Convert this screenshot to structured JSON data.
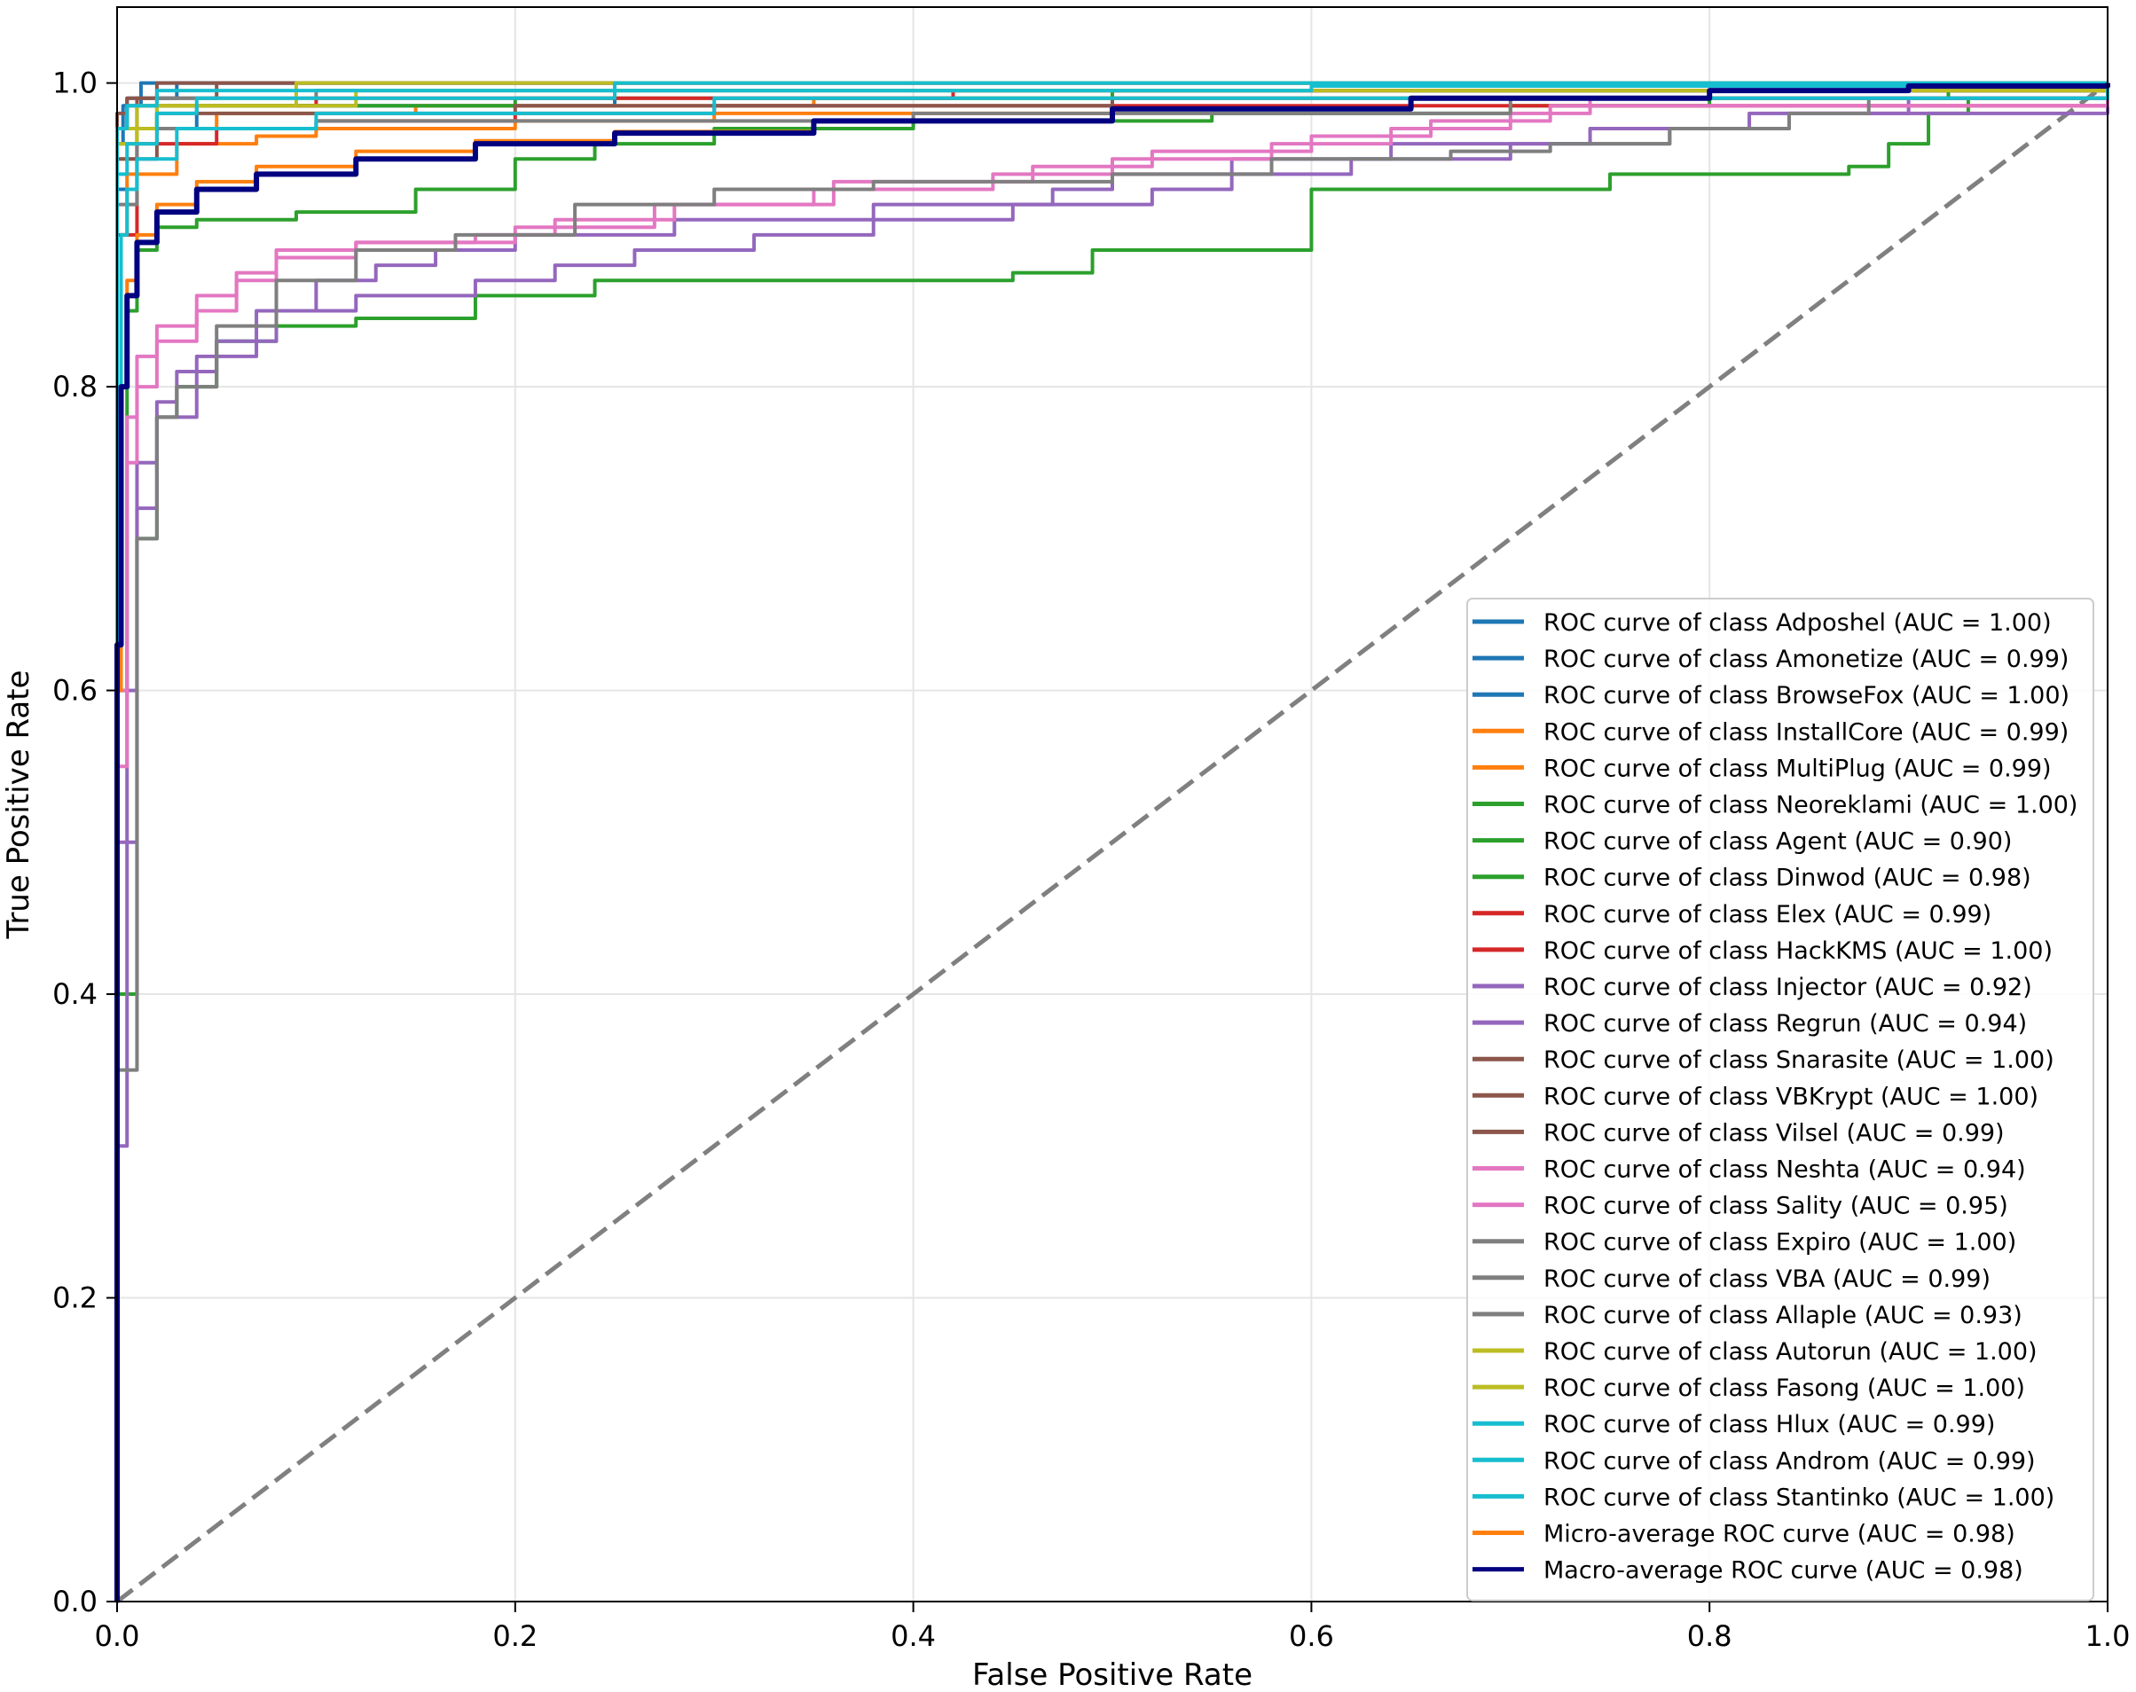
{
  "chart_data": {
    "type": "line",
    "title": "",
    "xlabel": "False Positive Rate",
    "ylabel": "True Positive Rate",
    "xlim": [
      0.0,
      1.0
    ],
    "ylim": [
      0.0,
      1.05
    ],
    "xticks": [
      "0.0",
      "0.2",
      "0.4",
      "0.6",
      "0.8",
      "1.0"
    ],
    "yticks": [
      "0.0",
      "0.2",
      "0.4",
      "0.6",
      "0.8",
      "1.0"
    ],
    "grid": true,
    "legend_position": "lower-right",
    "chance_line": {
      "x": [
        0,
        1
      ],
      "y": [
        0,
        1
      ],
      "color": "#808080",
      "style": "dashed"
    },
    "series": [
      {
        "name": "ROC curve of class Adposhel (AUC = 1.00)",
        "color": "#1f77b4",
        "x": [
          0,
          0.0,
          0.003,
          0.012,
          1.0
        ],
        "y": [
          0,
          0.96,
          0.985,
          1.0,
          1.0
        ]
      },
      {
        "name": "ROC curve of class Amonetize (AUC = 0.99)",
        "color": "#1f77b4",
        "x": [
          0,
          0.0,
          0.01,
          0.04,
          0.25,
          1.0
        ],
        "y": [
          0,
          0.93,
          0.97,
          0.985,
          0.995,
          1.0
        ]
      },
      {
        "name": "ROC curve of class BrowseFox (AUC = 1.00)",
        "color": "#1f77b4",
        "x": [
          0,
          0.0,
          0.005,
          0.03,
          1.0
        ],
        "y": [
          0,
          0.97,
          0.99,
          1.0,
          1.0
        ]
      },
      {
        "name": "ROC curve of class InstallCore (AUC = 0.99)",
        "color": "#ff7f0e",
        "x": [
          0,
          0.0,
          0.005,
          0.03,
          0.07,
          0.1,
          0.2,
          0.3,
          0.5,
          1.0
        ],
        "y": [
          0,
          0.9,
          0.94,
          0.96,
          0.965,
          0.97,
          0.975,
          0.98,
          0.99,
          1.0
        ]
      },
      {
        "name": "ROC curve of class MultiPlug (AUC = 0.99)",
        "color": "#ff7f0e",
        "x": [
          0,
          0.0,
          0.01,
          0.05,
          0.15,
          0.35,
          0.5,
          1.0
        ],
        "y": [
          0,
          0.95,
          0.97,
          0.98,
          0.985,
          0.99,
          0.995,
          1.0
        ]
      },
      {
        "name": "ROC curve of class Neoreklami (AUC = 1.00)",
        "color": "#2ca02c",
        "x": [
          0,
          0.0,
          0.02,
          0.2,
          0.5,
          1.0
        ],
        "y": [
          0,
          0.97,
          0.985,
          0.99,
          0.995,
          1.0
        ]
      },
      {
        "name": "ROC curve of class Agent (AUC = 0.90)",
        "color": "#2ca02c",
        "x": [
          0,
          0.0,
          0.01,
          0.02,
          0.03,
          0.05,
          0.08,
          0.12,
          0.18,
          0.24,
          0.33,
          0.45,
          0.49,
          0.6,
          0.75,
          0.87,
          0.89,
          0.91,
          0.93,
          1.0
        ],
        "y": [
          0,
          0.4,
          0.7,
          0.78,
          0.8,
          0.83,
          0.84,
          0.845,
          0.86,
          0.87,
          0.87,
          0.875,
          0.89,
          0.93,
          0.94,
          0.945,
          0.96,
          0.98,
          0.99,
          1.0
        ]
      },
      {
        "name": "ROC curve of class Dinwod (AUC = 0.98)",
        "color": "#2ca02c",
        "x": [
          0,
          0.0,
          0.005,
          0.01,
          0.02,
          0.04,
          0.09,
          0.15,
          0.2,
          0.24,
          0.3,
          0.4,
          0.55,
          0.7,
          0.8,
          0.92,
          1.0
        ],
        "y": [
          0,
          0.6,
          0.85,
          0.89,
          0.905,
          0.91,
          0.915,
          0.93,
          0.95,
          0.96,
          0.97,
          0.975,
          0.98,
          0.985,
          0.99,
          0.995,
          1.0
        ]
      },
      {
        "name": "ROC curve of class Elex (AUC = 0.99)",
        "color": "#d62728",
        "x": [
          0,
          0.0,
          0.01,
          0.05,
          0.1,
          0.2,
          0.3,
          1.0
        ],
        "y": [
          0,
          0.9,
          0.96,
          0.97,
          0.975,
          0.98,
          0.985,
          1.0
        ]
      },
      {
        "name": "ROC curve of class HackKMS (AUC = 1.00)",
        "color": "#d62728",
        "x": [
          0,
          0.0,
          0.01,
          0.1,
          0.3,
          0.42,
          1.0
        ],
        "y": [
          0,
          0.96,
          0.985,
          0.99,
          0.99,
          0.995,
          1.0
        ]
      },
      {
        "name": "ROC curve of class Injector (AUC = 0.92)",
        "color": "#9467bd",
        "x": [
          0,
          0.0,
          0.005,
          0.01,
          0.02,
          0.03,
          0.05,
          0.08,
          0.12,
          0.18,
          0.22,
          0.26,
          0.32,
          0.38,
          0.45,
          0.52,
          0.56,
          0.62,
          0.7,
          0.78,
          0.82,
          0.9,
          1.0
        ],
        "y": [
          0,
          0.3,
          0.6,
          0.75,
          0.79,
          0.81,
          0.83,
          0.85,
          0.86,
          0.87,
          0.88,
          0.89,
          0.9,
          0.91,
          0.92,
          0.93,
          0.94,
          0.95,
          0.96,
          0.97,
          0.98,
          0.99,
          1.0
        ]
      },
      {
        "name": "ROC curve of class Regrun (AUC = 0.94)",
        "color": "#9467bd",
        "x": [
          0,
          0.0,
          0.01,
          0.02,
          0.04,
          0.07,
          0.1,
          0.13,
          0.16,
          0.2,
          0.28,
          0.38,
          0.47,
          0.5,
          0.56,
          0.64,
          0.74,
          0.84,
          1.0
        ],
        "y": [
          0,
          0.5,
          0.72,
          0.78,
          0.82,
          0.85,
          0.87,
          0.88,
          0.89,
          0.9,
          0.91,
          0.92,
          0.93,
          0.94,
          0.95,
          0.96,
          0.97,
          0.98,
          1.0
        ]
      },
      {
        "name": "ROC curve of class Snarasite (AUC = 1.00)",
        "color": "#8c564b",
        "x": [
          0,
          0.0,
          0.005,
          0.02,
          1.0
        ],
        "y": [
          0,
          0.98,
          0.99,
          1.0,
          1.0
        ]
      },
      {
        "name": "ROC curve of class VBKrypt (AUC = 1.00)",
        "color": "#8c564b",
        "x": [
          0,
          0.0,
          0.01,
          0.05,
          1.0
        ],
        "y": [
          0,
          0.97,
          0.99,
          1.0,
          1.0
        ]
      },
      {
        "name": "ROC curve of class Vilsel (AUC = 0.99)",
        "color": "#8c564b",
        "x": [
          0,
          0.0,
          0.02,
          0.2,
          0.5,
          1.0
        ],
        "y": [
          0,
          0.95,
          0.98,
          0.985,
          0.99,
          1.0
        ]
      },
      {
        "name": "ROC curve of class Neshta (AUC = 0.94)",
        "color": "#e377c2",
        "x": [
          0,
          0.0,
          0.005,
          0.01,
          0.02,
          0.04,
          0.06,
          0.08,
          0.12,
          0.18,
          0.22,
          0.28,
          0.35,
          0.44,
          0.5,
          0.58,
          0.64,
          0.7,
          0.74,
          1.0
        ],
        "y": [
          0,
          0.6,
          0.78,
          0.82,
          0.84,
          0.86,
          0.875,
          0.89,
          0.895,
          0.9,
          0.91,
          0.92,
          0.93,
          0.94,
          0.95,
          0.96,
          0.97,
          0.98,
          0.99,
          1.0
        ]
      },
      {
        "name": "ROC curve of class Sality (AUC = 0.95)",
        "color": "#e377c2",
        "x": [
          0,
          0.0,
          0.005,
          0.01,
          0.02,
          0.04,
          0.06,
          0.08,
          0.12,
          0.2,
          0.27,
          0.36,
          0.46,
          0.52,
          0.6,
          0.66,
          0.72,
          1.0
        ],
        "y": [
          0,
          0.55,
          0.75,
          0.8,
          0.83,
          0.85,
          0.87,
          0.885,
          0.895,
          0.905,
          0.92,
          0.935,
          0.945,
          0.955,
          0.965,
          0.975,
          0.985,
          1.0
        ]
      },
      {
        "name": "ROC curve of class Expiro (AUC = 1.00)",
        "color": "#7f7f7f",
        "x": [
          0,
          0.0,
          0.005,
          0.02,
          0.1,
          1.0
        ],
        "y": [
          0,
          0.97,
          0.985,
          0.99,
          0.995,
          1.0
        ]
      },
      {
        "name": "ROC curve of class VBA (AUC = 0.99)",
        "color": "#7f7f7f",
        "x": [
          0,
          0.0,
          0.01,
          0.1,
          0.4,
          0.7,
          1.0
        ],
        "y": [
          0,
          0.92,
          0.97,
          0.975,
          0.98,
          0.99,
          1.0
        ]
      },
      {
        "name": "ROC curve of class Allaple (AUC = 0.93)",
        "color": "#7f7f7f",
        "x": [
          0,
          0.0,
          0.01,
          0.02,
          0.03,
          0.05,
          0.08,
          0.12,
          0.17,
          0.23,
          0.3,
          0.38,
          0.5,
          0.58,
          0.67,
          0.72,
          0.78,
          0.84,
          0.88,
          1.0
        ],
        "y": [
          0,
          0.35,
          0.7,
          0.78,
          0.8,
          0.84,
          0.87,
          0.89,
          0.9,
          0.92,
          0.93,
          0.935,
          0.94,
          0.95,
          0.955,
          0.96,
          0.97,
          0.98,
          0.99,
          1.0
        ]
      },
      {
        "name": "ROC curve of class Autorun (AUC = 1.00)",
        "color": "#bcbd22",
        "x": [
          0,
          0.0,
          0.01,
          0.09,
          1.0
        ],
        "y": [
          0,
          0.96,
          0.985,
          1.0,
          1.0
        ]
      },
      {
        "name": "ROC curve of class Fasong (AUC = 1.00)",
        "color": "#bcbd22",
        "x": [
          0,
          0.0,
          0.02,
          0.12,
          1.0
        ],
        "y": [
          0,
          0.97,
          0.985,
          0.995,
          1.0
        ]
      },
      {
        "name": "ROC curve of class Hlux (AUC = 0.99)",
        "color": "#17becf",
        "x": [
          0,
          0.0,
          0.002,
          0.005,
          0.01,
          0.03,
          0.1,
          0.3,
          1.0
        ],
        "y": [
          0,
          0.7,
          0.9,
          0.93,
          0.95,
          0.97,
          0.98,
          0.99,
          1.0
        ]
      },
      {
        "name": "ROC curve of class Androm (AUC = 0.99)",
        "color": "#17becf",
        "x": [
          0,
          0.0,
          0.005,
          0.02,
          0.04,
          0.25,
          0.6,
          1.0
        ],
        "y": [
          0,
          0.94,
          0.96,
          0.98,
          0.99,
          0.995,
          0.998,
          1.0
        ]
      },
      {
        "name": "ROC curve of class Stantinko (AUC = 1.00)",
        "color": "#17becf",
        "x": [
          0,
          0.0,
          0.005,
          0.02,
          0.25,
          1.0
        ],
        "y": [
          0,
          0.97,
          0.985,
          0.995,
          1.0,
          1.0
        ]
      },
      {
        "name": "Micro-average ROC curve (AUC = 0.98)",
        "color": "#ff7f0e",
        "x": [
          0,
          0.0,
          0.002,
          0.005,
          0.01,
          0.02,
          0.04,
          0.07,
          0.12,
          0.18,
          0.25,
          0.35,
          0.5,
          0.65,
          0.8,
          0.9,
          1.0
        ],
        "y": [
          0,
          0.6,
          0.8,
          0.87,
          0.9,
          0.92,
          0.935,
          0.945,
          0.955,
          0.962,
          0.968,
          0.975,
          0.983,
          0.99,
          0.995,
          0.998,
          1.0
        ]
      },
      {
        "name": "Macro-average ROC curve (AUC = 0.98)",
        "color": "#000080",
        "x": [
          0,
          0.0,
          0.002,
          0.005,
          0.01,
          0.02,
          0.04,
          0.07,
          0.12,
          0.18,
          0.25,
          0.35,
          0.5,
          0.65,
          0.8,
          0.9,
          1.0
        ],
        "y": [
          0,
          0.63,
          0.8,
          0.86,
          0.895,
          0.915,
          0.93,
          0.94,
          0.95,
          0.96,
          0.967,
          0.975,
          0.983,
          0.99,
          0.995,
          0.998,
          1.0
        ]
      }
    ]
  }
}
